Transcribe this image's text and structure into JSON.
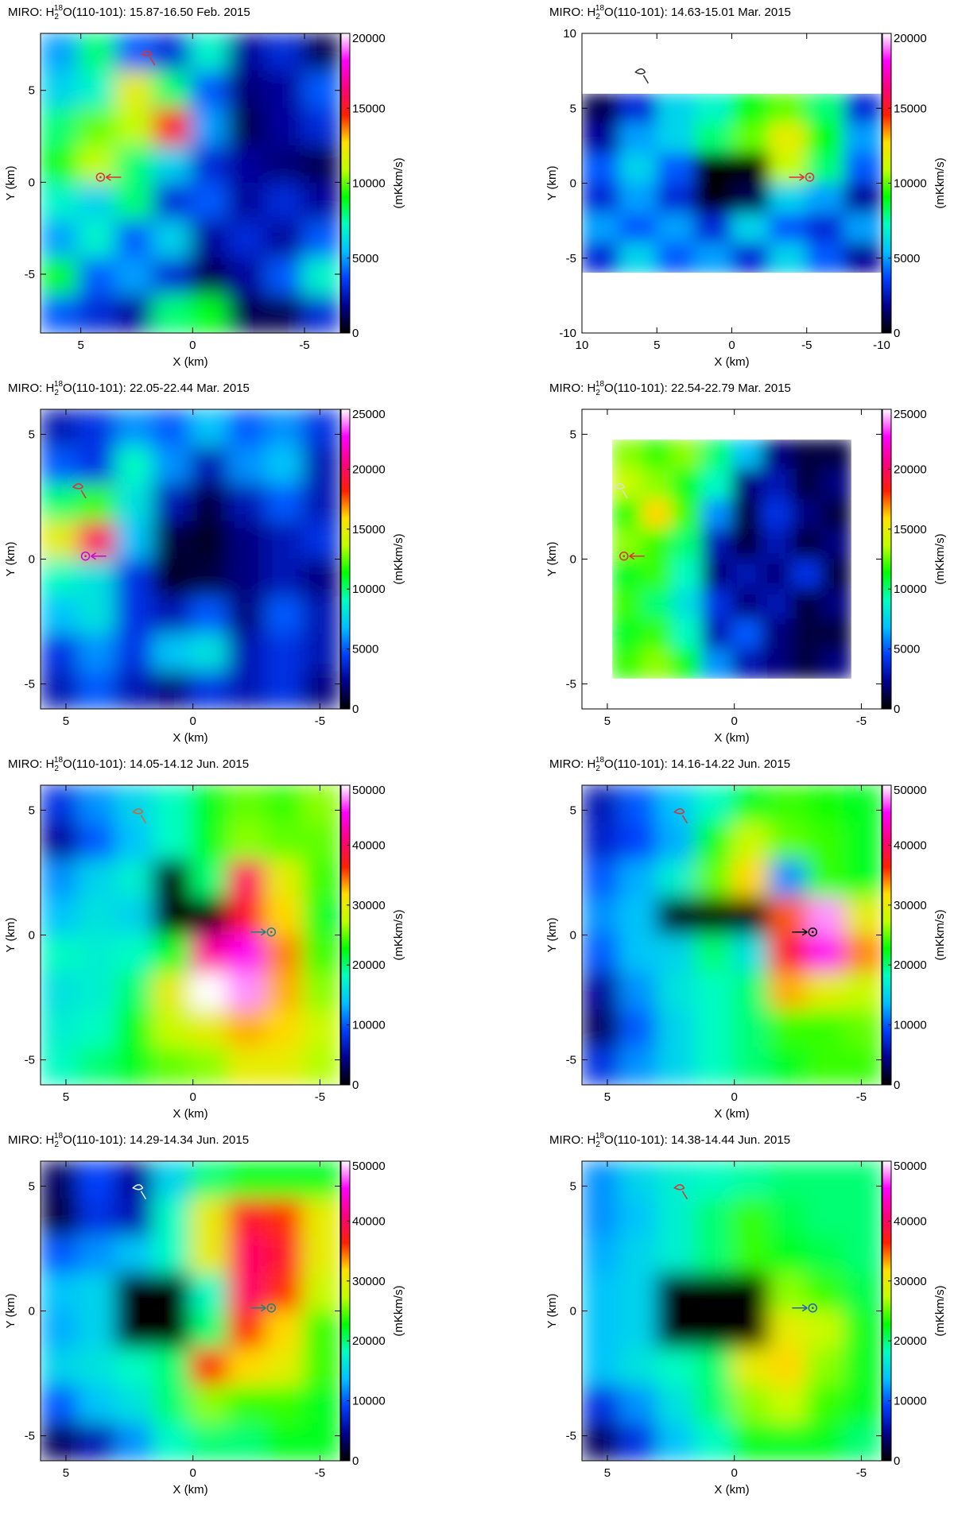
{
  "chart_data": [
    {
      "type": "heatmap",
      "title": [
        "MIRO: H",
        "2",
        "18",
        "O(110-101): 15.87-16.50 Feb. 2015"
      ],
      "x_label": "X (km)",
      "y_label": "Y (km)",
      "colorbar_label": "(mKkm/s)",
      "xlim": [
        6.8,
        -6.6
      ],
      "ylim": [
        -8.2,
        8.1
      ],
      "xticks": [
        5,
        0,
        -5
      ],
      "yticks": [
        -5,
        0,
        5
      ],
      "zlim": [
        0,
        20000
      ],
      "zticks": [
        0,
        5000,
        10000,
        15000,
        20000
      ],
      "colormap": [
        "#000000",
        "#000090",
        "#0040ff",
        "#00c0ff",
        "#00ffc0",
        "#00ff00",
        "#c0ff00",
        "#ffe000",
        "#ff2000",
        "#ff0080",
        "#ff00ff",
        "#ffffff"
      ],
      "z": [
        [
          5000,
          8000,
          4000,
          3000,
          7000,
          2000,
          3000,
          1000
        ],
        [
          6000,
          7000,
          12000,
          8000,
          4000,
          1500,
          2000,
          4000
        ],
        [
          8000,
          10000,
          11000,
          15000,
          5000,
          1000,
          2000,
          3000
        ],
        [
          9000,
          11000,
          8000,
          6000,
          3000,
          2000,
          1500,
          1000
        ],
        [
          7000,
          6000,
          8000,
          3000,
          4000,
          2000,
          3000,
          2000
        ],
        [
          5000,
          7000,
          4000,
          6000,
          2000,
          3000,
          2000,
          4000
        ],
        [
          9000,
          4000,
          5000,
          3000,
          1000,
          2000,
          4000,
          7000
        ],
        [
          4000,
          3000,
          2000,
          8000,
          9000,
          1000,
          1000,
          3000
        ]
      ]
    },
    {
      "type": "heatmap",
      "title": [
        "MIRO: H",
        "2",
        "18",
        "O(110-101): 14.63-15.01 Mar. 2015"
      ],
      "x_label": "X (km)",
      "y_label": "Y (km)",
      "colorbar_label": "(mKkm/s)",
      "xlim": [
        10,
        -10
      ],
      "ylim": [
        -10,
        10
      ],
      "xticks": [
        10,
        5,
        0,
        -5,
        -10
      ],
      "yticks": [
        -10,
        -5,
        0,
        5,
        10
      ],
      "zlim": [
        0,
        20000
      ],
      "zticks": [
        0,
        5000,
        10000,
        15000,
        20000
      ],
      "colormap": [
        "#000000",
        "#000090",
        "#0040ff",
        "#00c0ff",
        "#00ffc0",
        "#00ff00",
        "#c0ff00",
        "#ffe000",
        "#ff2000",
        "#ff0080",
        "#ff00ff",
        "#ffffff"
      ],
      "z": [
        [
          null,
          null,
          null,
          null,
          null,
          null,
          null,
          null
        ],
        [
          null,
          null,
          null,
          null,
          null,
          null,
          null,
          null
        ],
        [
          1000,
          3000,
          6000,
          7000,
          9000,
          10000,
          8000,
          3000
        ],
        [
          2000,
          5000,
          6000,
          8000,
          10000,
          12000,
          9000,
          5000
        ],
        [
          4000,
          6000,
          4000,
          0,
          0,
          11000,
          8000,
          4000
        ],
        [
          3000,
          5000,
          3000,
          0,
          1000,
          6000,
          5000,
          2000
        ],
        [
          5000,
          4000,
          5000,
          3000,
          6000,
          4000,
          3000,
          5000
        ],
        [
          3000,
          6000,
          4000,
          5000,
          3000,
          6000,
          4000,
          2000
        ],
        [
          null,
          null,
          null,
          null,
          null,
          null,
          null,
          null
        ],
        [
          null,
          null,
          null,
          null,
          null,
          null,
          null,
          null
        ]
      ]
    },
    {
      "type": "heatmap",
      "title": [
        "MIRO: H",
        "2",
        "18",
        "O(110-101): 22.05-22.44 Mar. 2015"
      ],
      "x_label": "X (km)",
      "y_label": "Y (km)",
      "colorbar_label": "(mKkm/s)",
      "xlim": [
        6,
        -5.8
      ],
      "ylim": [
        -6,
        6
      ],
      "xticks": [
        5,
        0,
        -5
      ],
      "yticks": [
        -5,
        0,
        5
      ],
      "zlim": [
        0,
        25000
      ],
      "zticks": [
        0,
        5000,
        10000,
        15000,
        20000,
        25000
      ],
      "colormap": [
        "#000000",
        "#000090",
        "#0040ff",
        "#00c0ff",
        "#00ffc0",
        "#00ff00",
        "#c0ff00",
        "#ffe000",
        "#ff2000",
        "#ff0080",
        "#ff00ff",
        "#ffffff"
      ],
      "z": [
        [
          3000,
          4000,
          6000,
          5000,
          7000,
          5000,
          6000,
          4000
        ],
        [
          5000,
          4000,
          9000,
          6000,
          3000,
          6000,
          7000,
          3000
        ],
        [
          10000,
          12000,
          8000,
          3000,
          1000,
          3000,
          5000,
          3000
        ],
        [
          15000,
          20000,
          7000,
          1000,
          500,
          2000,
          3000,
          4000
        ],
        [
          9000,
          8000,
          4000,
          500,
          1000,
          2000,
          3000,
          2000
        ],
        [
          7000,
          8000,
          4000,
          3000,
          5000,
          2000,
          5000,
          3000
        ],
        [
          4000,
          6000,
          4000,
          7000,
          8000,
          3000,
          4000,
          3000
        ],
        [
          3000,
          5000,
          3000,
          2000,
          4000,
          3000,
          4000,
          2000
        ]
      ]
    },
    {
      "type": "heatmap",
      "title": [
        "MIRO: H",
        "2",
        "18",
        "O(110-101): 22.54-22.79 Mar. 2015"
      ],
      "x_label": "X (km)",
      "y_label": "Y (km)",
      "colorbar_label": "(mKkm/s)",
      "xlim": [
        6,
        -5.8
      ],
      "ylim": [
        -6,
        6
      ],
      "xticks": [
        5,
        0,
        -5
      ],
      "yticks": [
        -5,
        0,
        5
      ],
      "zlim": [
        0,
        25000
      ],
      "zticks": [
        0,
        5000,
        10000,
        15000,
        20000,
        25000
      ],
      "colormap": [
        "#000000",
        "#000090",
        "#0040ff",
        "#00c0ff",
        "#00ffc0",
        "#00ff00",
        "#c0ff00",
        "#ffe000",
        "#ff2000",
        "#ff0080",
        "#ff00ff",
        "#ffffff"
      ],
      "z": [
        [
          null,
          null,
          null,
          null,
          null,
          null,
          null,
          null,
          null,
          null
        ],
        [
          null,
          13000,
          12000,
          13000,
          10000,
          7000,
          2000,
          1000,
          1000,
          null
        ],
        [
          null,
          14000,
          13000,
          11000,
          9000,
          2000,
          3000,
          1000,
          2000,
          null
        ],
        [
          null,
          12000,
          16000,
          12000,
          6000,
          1000,
          4000,
          2000,
          1000,
          null
        ],
        [
          null,
          13000,
          12000,
          10000,
          3000,
          1000,
          3000,
          1000,
          2000,
          null
        ],
        [
          null,
          11000,
          12000,
          9000,
          2000,
          3000,
          2000,
          4000,
          1000,
          null
        ],
        [
          null,
          12000,
          10000,
          8000,
          4000,
          2000,
          3000,
          1000,
          2000,
          null
        ],
        [
          null,
          11000,
          12000,
          9000,
          3000,
          5000,
          2000,
          1000,
          1000,
          null
        ],
        [
          null,
          12000,
          13000,
          11000,
          6000,
          3000,
          2000,
          1000,
          2000,
          null
        ],
        [
          null,
          null,
          null,
          null,
          null,
          null,
          null,
          null,
          null,
          null
        ]
      ]
    },
    {
      "type": "heatmap",
      "title": [
        "MIRO: H",
        "2",
        "18",
        "O(110-101): 14.05-14.12 Jun. 2015"
      ],
      "x_label": "X (km)",
      "y_label": "Y (km)",
      "colorbar_label": "(mKkm/s)",
      "xlim": [
        6,
        -5.8
      ],
      "ylim": [
        -6,
        6
      ],
      "xticks": [
        5,
        0,
        -5
      ],
      "yticks": [
        -5,
        0,
        5
      ],
      "zlim": [
        0,
        50000
      ],
      "zticks": [
        0,
        10000,
        20000,
        30000,
        40000,
        50000
      ],
      "colormap": [
        "#000000",
        "#000090",
        "#0040ff",
        "#00c0ff",
        "#00ffc0",
        "#00ff00",
        "#c0ff00",
        "#ffe000",
        "#ff2000",
        "#ff0080",
        "#ff00ff",
        "#ffffff"
      ],
      "z": [
        [
          8000,
          12000,
          15000,
          18000,
          22000,
          25000,
          24000,
          26000
        ],
        [
          5000,
          10000,
          14000,
          18000,
          22000,
          26000,
          25000,
          25000
        ],
        [
          12000,
          15000,
          17000,
          0,
          20000,
          40000,
          30000,
          24000
        ],
        [
          14000,
          16000,
          15000,
          0,
          0,
          38000,
          32000,
          22000
        ],
        [
          18000,
          17000,
          18000,
          22000,
          42000,
          45000,
          34000,
          24000
        ],
        [
          16000,
          17000,
          20000,
          30000,
          50000,
          48000,
          33000,
          26000
        ],
        [
          17000,
          18000,
          22000,
          28000,
          30000,
          33000,
          32000,
          28000
        ],
        [
          18000,
          20000,
          22000,
          25000,
          26000,
          30000,
          30000,
          27000
        ]
      ]
    },
    {
      "type": "heatmap",
      "title": [
        "MIRO: H",
        "2",
        "18",
        "O(110-101): 14.16-14.22 Jun. 2015"
      ],
      "x_label": "X (km)",
      "y_label": "Y (km)",
      "colorbar_label": "(mKkm/s)",
      "xlim": [
        6,
        -5.8
      ],
      "ylim": [
        -6,
        6
      ],
      "xticks": [
        5,
        0,
        -5
      ],
      "yticks": [
        -5,
        0,
        5
      ],
      "zlim": [
        0,
        50000
      ],
      "zticks": [
        0,
        10000,
        20000,
        30000,
        40000,
        50000
      ],
      "colormap": [
        "#000000",
        "#000090",
        "#0040ff",
        "#00c0ff",
        "#00ffc0",
        "#00ff00",
        "#c0ff00",
        "#ffe000",
        "#ff2000",
        "#ff0080",
        "#ff00ff",
        "#ffffff"
      ],
      "z": [
        [
          6000,
          10000,
          14000,
          18000,
          22000,
          24000,
          23000,
          22000
        ],
        [
          7000,
          9000,
          13000,
          22000,
          28000,
          25000,
          24000,
          22000
        ],
        [
          10000,
          13000,
          17000,
          25000,
          32000,
          12000,
          24000,
          22000
        ],
        [
          12000,
          14000,
          0,
          0,
          0,
          35000,
          48000,
          30000
        ],
        [
          10000,
          14000,
          15000,
          20000,
          16000,
          38000,
          45000,
          34000
        ],
        [
          5000,
          12000,
          16000,
          18000,
          20000,
          33000,
          30000,
          28000
        ],
        [
          3000,
          10000,
          15000,
          18000,
          20000,
          24000,
          24000,
          25000
        ],
        [
          8000,
          12000,
          15000,
          18000,
          20000,
          22000,
          24000,
          24000
        ]
      ]
    },
    {
      "type": "heatmap",
      "title": [
        "MIRO: H",
        "2",
        "18",
        "O(110-101): 14.29-14.34 Jun. 2015"
      ],
      "x_label": "X (km)",
      "y_label": "Y (km)",
      "colorbar_label": "(mKkm/s)",
      "xlim": [
        6,
        -5.8
      ],
      "ylim": [
        -6,
        6
      ],
      "xticks": [
        5,
        0,
        -5
      ],
      "yticks": [
        -5,
        0,
        5
      ],
      "zlim": [
        0,
        50000
      ],
      "zticks": [
        0,
        10000,
        20000,
        30000,
        40000,
        50000
      ],
      "colormap": [
        "#000000",
        "#000090",
        "#0040ff",
        "#00c0ff",
        "#00ffc0",
        "#00ff00",
        "#c0ff00",
        "#ffe000",
        "#ff2000",
        "#ff0080",
        "#ff00ff",
        "#ffffff"
      ],
      "z": [
        [
          3000,
          9000,
          5000,
          15000,
          20000,
          22000,
          22000,
          22000
        ],
        [
          2000,
          8000,
          6000,
          18000,
          30000,
          38000,
          36000,
          30000
        ],
        [
          10000,
          12000,
          14000,
          18000,
          30000,
          40000,
          38000,
          30000
        ],
        [
          14000,
          15000,
          0,
          0,
          18000,
          40000,
          36000,
          28000
        ],
        [
          13000,
          15000,
          0,
          0,
          20000,
          36000,
          32000,
          24000
        ],
        [
          15000,
          16000,
          18000,
          20000,
          36000,
          32000,
          30000,
          24000
        ],
        [
          10000,
          14000,
          16000,
          20000,
          26000,
          24000,
          24000,
          22000
        ],
        [
          3000,
          6000,
          12000,
          18000,
          20000,
          20000,
          22000,
          22000
        ]
      ]
    },
    {
      "type": "heatmap",
      "title": [
        "MIRO: H",
        "2",
        "18",
        "O(110-101): 14.38-14.44 Jun. 2015"
      ],
      "x_label": "X (km)",
      "y_label": "Y (km)",
      "colorbar_label": "(mKkm/s)",
      "xlim": [
        6,
        -5.8
      ],
      "ylim": [
        -6,
        6
      ],
      "xticks": [
        5,
        0,
        -5
      ],
      "yticks": [
        -5,
        0,
        5
      ],
      "zlim": [
        0,
        50000
      ],
      "zticks": [
        0,
        10000,
        20000,
        30000,
        40000,
        50000
      ],
      "colormap": [
        "#000000",
        "#000090",
        "#0040ff",
        "#00c0ff",
        "#00ffc0",
        "#00ff00",
        "#c0ff00",
        "#ffe000",
        "#ff2000",
        "#ff0080",
        "#ff00ff",
        "#ffffff"
      ],
      "z": [
        [
          12000,
          15000,
          17000,
          18000,
          19000,
          20000,
          20000,
          20000
        ],
        [
          12000,
          14000,
          17000,
          20000,
          24000,
          21000,
          20000,
          20000
        ],
        [
          13000,
          15000,
          17000,
          20000,
          24000,
          22000,
          21000,
          20000
        ],
        [
          14000,
          15000,
          0,
          0,
          0,
          26000,
          24000,
          21000
        ],
        [
          14000,
          15000,
          0,
          0,
          0,
          30000,
          28000,
          22000
        ],
        [
          14000,
          16000,
          18000,
          20000,
          30000,
          32000,
          26000,
          22000
        ],
        [
          8000,
          12000,
          16000,
          20000,
          26000,
          28000,
          24000,
          22000
        ],
        [
          3000,
          8000,
          14000,
          18000,
          22000,
          22000,
          22000,
          20000
        ]
      ]
    }
  ]
}
